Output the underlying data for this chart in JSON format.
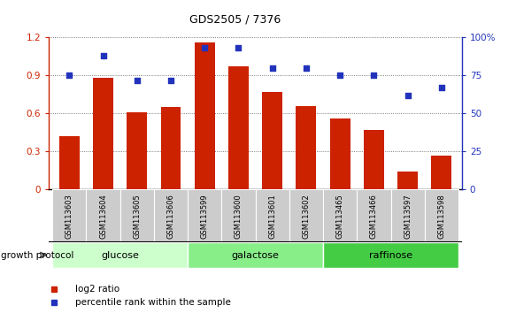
{
  "title": "GDS2505 / 7376",
  "categories": [
    "GSM113603",
    "GSM113604",
    "GSM113605",
    "GSM113606",
    "GSM113599",
    "GSM113600",
    "GSM113601",
    "GSM113602",
    "GSM113465",
    "GSM113466",
    "GSM113597",
    "GSM113598"
  ],
  "log2_ratio": [
    0.42,
    0.88,
    0.61,
    0.65,
    1.16,
    0.97,
    0.77,
    0.66,
    0.56,
    0.47,
    0.14,
    0.27
  ],
  "percentile_rank": [
    75,
    88,
    72,
    72,
    93,
    93,
    80,
    80,
    75,
    75,
    62,
    67
  ],
  "bar_color": "#cc2200",
  "dot_color": "#2233bb",
  "ylim_left": [
    0,
    1.2
  ],
  "ylim_right": [
    0,
    100
  ],
  "yticks_left": [
    0,
    0.3,
    0.6,
    0.9,
    1.2
  ],
  "yticks_right": [
    0,
    25,
    50,
    75,
    100
  ],
  "ytick_labels_right": [
    "0",
    "25",
    "50",
    "75",
    "100%"
  ],
  "groups": [
    {
      "label": "glucose",
      "start": 0,
      "end": 3,
      "color": "#ccffcc"
    },
    {
      "label": "galactose",
      "start": 4,
      "end": 7,
      "color": "#88ee88"
    },
    {
      "label": "raffinose",
      "start": 8,
      "end": 11,
      "color": "#44cc44"
    }
  ],
  "legend_bar_label": "log2 ratio",
  "legend_dot_label": "percentile rank within the sample",
  "growth_protocol_label": "growth protocol",
  "grid_color": "#555555",
  "background_color": "#ffffff"
}
